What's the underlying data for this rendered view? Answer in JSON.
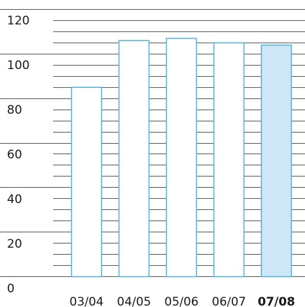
{
  "chart_data": {
    "type": "bar",
    "categories": [
      "03/04",
      "04/05",
      "05/06",
      "06/07",
      "07/08"
    ],
    "values": [
      85,
      106,
      107,
      105,
      104
    ],
    "highlight_index": 4,
    "ylim": [
      0,
      120
    ],
    "yticks": [
      "0",
      "20",
      "40",
      "60",
      "80",
      "100",
      "120"
    ],
    "title": "",
    "xlabel": "",
    "ylabel": "",
    "grid": true,
    "colors": {
      "bar_fill": "#ffffff",
      "bar_stroke": "#4fb3d9",
      "highlight_fill": "#cfe6f7",
      "grid": "#5a5a5a",
      "text": "#1a1a1a"
    }
  }
}
